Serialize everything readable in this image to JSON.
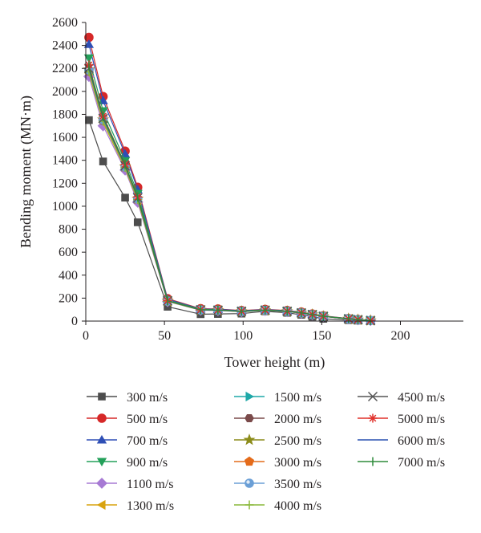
{
  "chart_data": {
    "type": "line",
    "xlabel": "Tower height (m)",
    "ylabel": "Bending moment (MN·m)",
    "xlim": [
      0,
      240
    ],
    "ylim": [
      0,
      2600
    ],
    "x_ticks": [
      0,
      50,
      100,
      150,
      200
    ],
    "x_tick_labels": [
      "0",
      "50",
      "100",
      "150",
      "200"
    ],
    "y_ticks": [
      0,
      200,
      400,
      600,
      800,
      1000,
      1200,
      1400,
      1600,
      1800,
      2000,
      2200,
      2400,
      2600
    ],
    "y_tick_labels": [
      "0",
      "200",
      "400",
      "600",
      "800",
      "1000",
      "1200",
      "1400",
      "1600",
      "1800",
      "2000",
      "2200",
      "2400",
      "2600"
    ],
    "grid": false,
    "legend_position": "bottom",
    "x": [
      2,
      11,
      25,
      33,
      52,
      73,
      84,
      99,
      114,
      128,
      137,
      144,
      151,
      167,
      173,
      181
    ],
    "series": [
      {
        "name": "300 m/s",
        "marker": "square",
        "color": "#4d4d4d",
        "values": [
          1750,
          1390,
          1075,
          860,
          125,
          60,
          62,
          65,
          85,
          72,
          55,
          38,
          20,
          8,
          4,
          2
        ]
      },
      {
        "name": "500 m/s",
        "marker": "circle",
        "color": "#d62828",
        "values": [
          2470,
          1955,
          1480,
          1165,
          195,
          108,
          105,
          92,
          102,
          92,
          78,
          62,
          46,
          22,
          14,
          6
        ]
      },
      {
        "name": "700 m/s",
        "marker": "triangle-up",
        "color": "#2e4fb5",
        "values": [
          2410,
          1920,
          1455,
          1145,
          190,
          105,
          102,
          90,
          100,
          90,
          76,
          60,
          44,
          21,
          13,
          6
        ]
      },
      {
        "name": "900 m/s",
        "marker": "triangle-down",
        "color": "#23a05a",
        "values": [
          2290,
          1830,
          1395,
          1110,
          182,
          102,
          98,
          87,
          97,
          87,
          73,
          58,
          42,
          20,
          12,
          5
        ]
      },
      {
        "name": "1100 m/s",
        "marker": "diamond",
        "color": "#a77ad4",
        "values": [
          2130,
          1700,
          1315,
          1035,
          170,
          95,
          92,
          82,
          92,
          82,
          69,
          55,
          40,
          19,
          11,
          5
        ]
      },
      {
        "name": "1300 m/s",
        "marker": "triangle-left",
        "color": "#d9a30f",
        "values": [
          2160,
          1730,
          1330,
          1050,
          172,
          96,
          93,
          83,
          93,
          83,
          70,
          56,
          41,
          19,
          11,
          5
        ]
      },
      {
        "name": "1500 m/s",
        "marker": "triangle-right",
        "color": "#1fa8a8",
        "values": [
          2200,
          1760,
          1350,
          1070,
          175,
          98,
          95,
          85,
          95,
          85,
          71,
          57,
          41,
          20,
          12,
          5
        ]
      },
      {
        "name": "2000 m/s",
        "marker": "hexagon",
        "color": "#7a4a4a",
        "values": [
          2175,
          1745,
          1340,
          1060,
          174,
          97,
          94,
          84,
          94,
          84,
          70,
          56,
          41,
          19,
          11,
          5
        ]
      },
      {
        "name": "2500 m/s",
        "marker": "star",
        "color": "#8c8c1a",
        "values": [
          2190,
          1755,
          1345,
          1065,
          175,
          97,
          95,
          84,
          94,
          84,
          71,
          57,
          41,
          20,
          12,
          5
        ]
      },
      {
        "name": "3000 m/s",
        "marker": "pentagon",
        "color": "#e46b1a",
        "values": [
          2180,
          1750,
          1342,
          1062,
          174,
          97,
          94,
          84,
          94,
          84,
          70,
          56,
          41,
          19,
          11,
          5
        ]
      },
      {
        "name": "3500 m/s",
        "marker": "sphere",
        "color": "#6b9fd6",
        "values": [
          2185,
          1752,
          1343,
          1063,
          174,
          97,
          94,
          84,
          94,
          84,
          70,
          56,
          41,
          19,
          11,
          5
        ]
      },
      {
        "name": "4000 m/s",
        "marker": "plus",
        "color": "#8ab83a",
        "values": [
          2170,
          1740,
          1338,
          1058,
          173,
          96,
          94,
          83,
          93,
          83,
          70,
          56,
          41,
          19,
          11,
          5
        ]
      },
      {
        "name": "4500 m/s",
        "marker": "cross",
        "color": "#555555",
        "values": [
          2200,
          1765,
          1352,
          1072,
          176,
          98,
          95,
          85,
          95,
          85,
          71,
          57,
          42,
          20,
          12,
          5
        ]
      },
      {
        "name": "5000 m/s",
        "marker": "asterisk",
        "color": "#e0302a",
        "values": [
          2230,
          1785,
          1365,
          1082,
          178,
          99,
          96,
          86,
          96,
          86,
          72,
          58,
          42,
          20,
          12,
          5
        ]
      },
      {
        "name": "6000 m/s",
        "marker": "line",
        "color": "#2950b0",
        "values": [
          2210,
          1772,
          1358,
          1076,
          177,
          98,
          95,
          85,
          95,
          85,
          71,
          57,
          42,
          20,
          12,
          5
        ]
      },
      {
        "name": "7000 m/s",
        "marker": "vbar",
        "color": "#2e8b3a",
        "values": [
          2220,
          1778,
          1362,
          1079,
          177,
          99,
          96,
          86,
          96,
          86,
          72,
          58,
          42,
          20,
          12,
          5
        ]
      }
    ]
  }
}
